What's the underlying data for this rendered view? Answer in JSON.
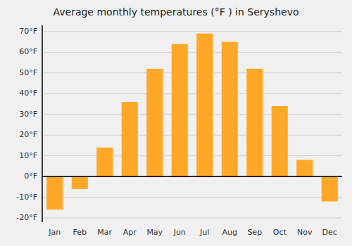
{
  "chart_data": {
    "type": "bar",
    "title": "Average monthly temperatures (°F ) in Seryshevo",
    "categories": [
      "Jan",
      "Feb",
      "Mar",
      "Apr",
      "May",
      "Jun",
      "Jul",
      "Aug",
      "Sep",
      "Oct",
      "Nov",
      "Dec"
    ],
    "values": [
      -16,
      -6,
      14,
      36,
      52,
      64,
      69,
      65,
      52,
      34,
      8,
      -12
    ],
    "color": "#FFA726",
    "ylim": [
      -22,
      73
    ],
    "yticks": [
      {
        "value": -20,
        "label": "-20°F"
      },
      {
        "value": -10,
        "label": "-10°F"
      },
      {
        "value": 0,
        "label": "0°F"
      },
      {
        "value": 10,
        "label": "10°F"
      },
      {
        "value": 20,
        "label": "20°F"
      },
      {
        "value": 30,
        "label": "30°F"
      },
      {
        "value": 40,
        "label": "40°F"
      },
      {
        "value": 50,
        "label": "50°F"
      },
      {
        "value": 60,
        "label": "60°F"
      },
      {
        "value": 70,
        "label": "70°F"
      }
    ],
    "grid": true
  }
}
